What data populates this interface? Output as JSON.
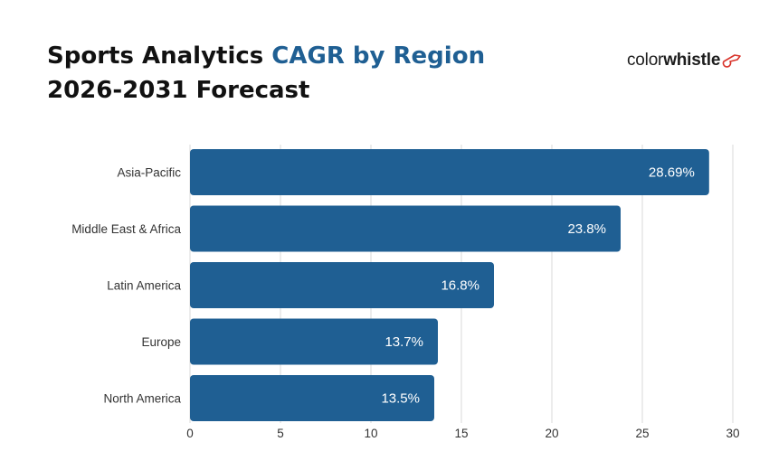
{
  "header": {
    "title_part1": "Sports Analytics ",
    "title_accent": "CAGR by Region",
    "title_line2": "2026-2031 Forecast"
  },
  "logo": {
    "text_color": "color",
    "text_whistle": "whistle"
  },
  "colors": {
    "bar": "#1f5f93",
    "accent": "#1f5f93",
    "grid": "#d9d9d9",
    "logo_icon": "#d9342b"
  },
  "chart_data": {
    "type": "bar",
    "orientation": "horizontal",
    "categories": [
      "Asia-Pacific",
      "Middle East & Africa",
      "Latin America",
      "Europe",
      "North America"
    ],
    "values": [
      28.69,
      23.8,
      16.8,
      13.7,
      13.5
    ],
    "value_labels": [
      "28.69%",
      "23.8%",
      "16.8%",
      "13.7%",
      "13.5%"
    ],
    "xlim": [
      0,
      30
    ],
    "xticks": [
      0,
      5,
      10,
      15,
      20,
      25,
      30
    ],
    "grid": true,
    "legend": false,
    "title": "Sports Analytics CAGR by Region 2026-2031 Forecast",
    "xlabel": "",
    "ylabel": ""
  }
}
